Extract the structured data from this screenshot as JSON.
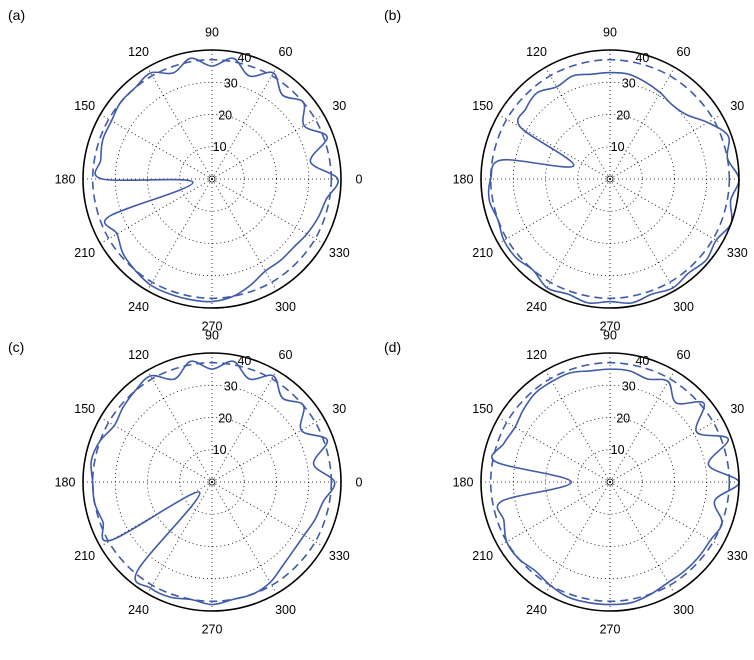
{
  "chart_data": [
    {
      "type": "polar",
      "panel_label": "(a)",
      "angular_ticks": [
        "0",
        "30",
        "60",
        "90",
        "120",
        "150",
        "180",
        "210",
        "240",
        "270",
        "300",
        "330"
      ],
      "radial_ticks": [
        "10",
        "20",
        "30",
        "40"
      ],
      "rlim": [
        0,
        40
      ],
      "grid": true,
      "series": [
        {
          "style": "solid",
          "color": "#3f5ba9",
          "theta_deg": [
            0,
            10,
            20,
            30,
            40,
            50,
            60,
            70,
            80,
            90,
            100,
            110,
            120,
            130,
            140,
            150,
            160,
            170,
            180,
            190,
            200,
            210,
            220,
            230,
            240,
            250,
            260,
            270,
            280,
            290,
            300,
            310,
            320,
            330,
            340,
            350,
            360
          ],
          "r": [
            39,
            31,
            38,
            33,
            37,
            34,
            38,
            34,
            38,
            35,
            38,
            35,
            38,
            37,
            37,
            36,
            36,
            35,
            34,
            6,
            34,
            34,
            36,
            37,
            38,
            38,
            38,
            38,
            37,
            35,
            33,
            33,
            33,
            34,
            35,
            36,
            39
          ]
        },
        {
          "style": "dashed",
          "color": "#3f5ba9",
          "theta_deg": [
            0,
            30,
            60,
            90,
            120,
            150,
            180,
            210,
            240,
            270,
            300,
            330,
            360
          ],
          "r": [
            37,
            37,
            37,
            37,
            37,
            37,
            37,
            37,
            37,
            37,
            37,
            37,
            37
          ]
        }
      ]
    },
    {
      "type": "polar",
      "panel_label": "(b)",
      "angular_ticks": [
        "0",
        "30",
        "60",
        "90",
        "120",
        "150",
        "180",
        "210",
        "240",
        "270",
        "300",
        "330"
      ],
      "radial_ticks": [
        "10",
        "20",
        "30",
        "40"
      ],
      "rlim": [
        0,
        40
      ],
      "grid": true,
      "series": [
        {
          "style": "solid",
          "color": "#3f5ba9",
          "theta_deg": [
            0,
            10,
            20,
            30,
            40,
            50,
            60,
            70,
            80,
            90,
            100,
            110,
            120,
            130,
            140,
            150,
            160,
            170,
            180,
            190,
            200,
            210,
            220,
            230,
            240,
            250,
            260,
            270,
            280,
            290,
            300,
            310,
            320,
            330,
            340,
            350,
            360
          ],
          "r": [
            40,
            37,
            39,
            35,
            31,
            30,
            31,
            32,
            33,
            33,
            33,
            34,
            33,
            35,
            34,
            32,
            12,
            34,
            37,
            38,
            37,
            38,
            38,
            37,
            39,
            38,
            39,
            38,
            39,
            38,
            39,
            38,
            39,
            38,
            40,
            38,
            40
          ]
        },
        {
          "style": "dashed",
          "color": "#3f5ba9",
          "theta_deg": [
            0,
            30,
            60,
            90,
            120,
            150,
            180,
            210,
            240,
            270,
            300,
            330,
            360
          ],
          "r": [
            37,
            37,
            37,
            37,
            37,
            37,
            37,
            37,
            37,
            37,
            37,
            37,
            37
          ]
        }
      ]
    },
    {
      "type": "polar",
      "panel_label": "(c)",
      "angular_ticks": [
        "0",
        "30",
        "60",
        "90",
        "120",
        "150",
        "180",
        "210",
        "240",
        "270",
        "300",
        "330"
      ],
      "radial_ticks": [
        "10",
        "20",
        "30",
        "40"
      ],
      "rlim": [
        0,
        40
      ],
      "grid": true,
      "series": [
        {
          "style": "solid",
          "color": "#3f5ba9",
          "theta_deg": [
            0,
            10,
            20,
            30,
            40,
            50,
            60,
            70,
            80,
            90,
            100,
            110,
            120,
            130,
            140,
            150,
            160,
            170,
            180,
            190,
            200,
            210,
            220,
            230,
            240,
            250,
            260,
            270,
            280,
            290,
            300,
            310,
            320,
            330,
            340,
            350,
            360
          ],
          "r": [
            38,
            32,
            38,
            32,
            37,
            34,
            38,
            34,
            38,
            35,
            38,
            34,
            38,
            37,
            36,
            35,
            37,
            38,
            37,
            37,
            36,
            36,
            5,
            36,
            38,
            38,
            37,
            38,
            37,
            37,
            36,
            34,
            33,
            33,
            34,
            35,
            38
          ]
        },
        {
          "style": "dashed",
          "color": "#3f5ba9",
          "theta_deg": [
            0,
            30,
            60,
            90,
            120,
            150,
            180,
            210,
            240,
            270,
            300,
            330,
            360
          ],
          "r": [
            37,
            37,
            37,
            37,
            37,
            37,
            37,
            37,
            37,
            37,
            37,
            37,
            37
          ]
        }
      ]
    },
    {
      "type": "polar",
      "panel_label": "(d)",
      "angular_ticks": [
        "0",
        "30",
        "60",
        "90",
        "120",
        "150",
        "180",
        "210",
        "240",
        "270",
        "300",
        "330"
      ],
      "radial_ticks": [
        "10",
        "20",
        "30",
        "40"
      ],
      "rlim": [
        0,
        40
      ],
      "grid": true,
      "series": [
        {
          "style": "solid",
          "color": "#3f5ba9",
          "theta_deg": [
            0,
            10,
            20,
            30,
            40,
            50,
            60,
            70,
            80,
            90,
            100,
            110,
            120,
            130,
            140,
            150,
            160,
            170,
            180,
            190,
            200,
            210,
            220,
            230,
            240,
            250,
            260,
            270,
            280,
            290,
            300,
            310,
            320,
            330,
            340,
            350,
            360
          ],
          "r": [
            40,
            31,
            39,
            31,
            38,
            32,
            36,
            34,
            35,
            35,
            35,
            36,
            36,
            36,
            35,
            34,
            35,
            36,
            12,
            34,
            35,
            37,
            37,
            36,
            37,
            38,
            38,
            38,
            38,
            37,
            36,
            36,
            36,
            36,
            37,
            33,
            40
          ]
        },
        {
          "style": "dashed",
          "color": "#3f5ba9",
          "theta_deg": [
            0,
            30,
            60,
            90,
            120,
            150,
            180,
            210,
            240,
            270,
            300,
            330,
            360
          ],
          "r": [
            37,
            37,
            37,
            37,
            37,
            37,
            37,
            37,
            37,
            37,
            37,
            37,
            37
          ]
        }
      ]
    }
  ]
}
